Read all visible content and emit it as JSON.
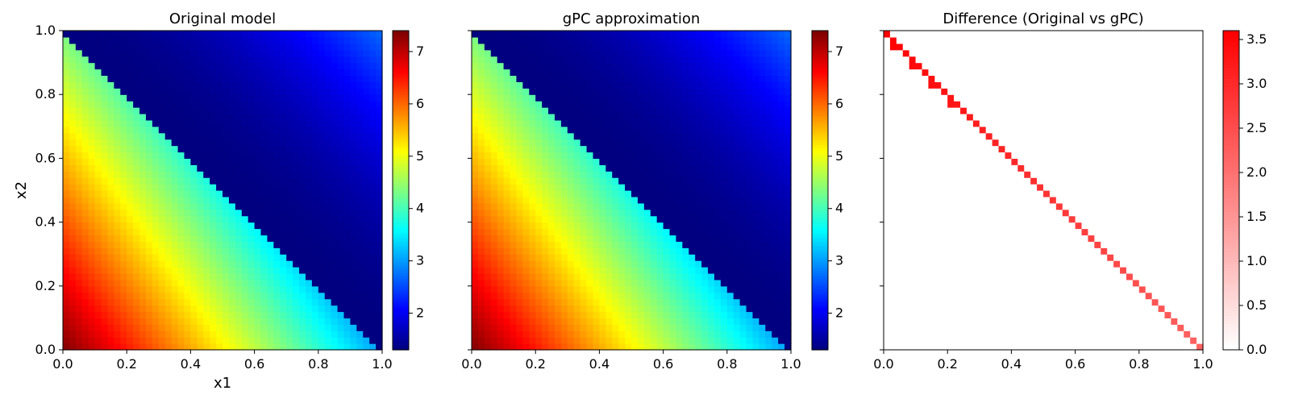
{
  "chart_data": [
    {
      "type": "heatmap",
      "title": "Original model",
      "xlabel": "x1",
      "ylabel": "x2",
      "xlim": [
        0.0,
        1.0
      ],
      "ylim": [
        0.0,
        1.0
      ],
      "xticks": [
        "0.0",
        "0.2",
        "0.4",
        "0.6",
        "0.8",
        "1.0"
      ],
      "yticks": [
        "0.0",
        "0.2",
        "0.4",
        "0.6",
        "0.8",
        "1.0"
      ],
      "show_yticklabels": true,
      "grid_resolution": 50,
      "colormap": "jet",
      "clim": [
        1.3,
        7.4
      ],
      "colorbar_ticks": [
        "2",
        "3",
        "4",
        "5",
        "6",
        "7"
      ],
      "region_boundary": "x1 + x2 = 1",
      "value_corners": {
        "x1=0,x2=0": 7.4,
        "x1=1,x2=0": 3.0,
        "x1=0,x2=1": 4.3,
        "just_above_diagonal": 1.3,
        "x1=1,x2=1": 2.7
      }
    },
    {
      "type": "heatmap",
      "title": "gPC approximation",
      "xlabel": "",
      "ylabel": "",
      "xlim": [
        0.0,
        1.0
      ],
      "ylim": [
        0.0,
        1.0
      ],
      "xticks": [
        "0.0",
        "0.2",
        "0.4",
        "0.6",
        "0.8",
        "1.0"
      ],
      "yticks": [
        "0.0",
        "0.2",
        "0.4",
        "0.6",
        "0.8",
        "1.0"
      ],
      "show_yticklabels": false,
      "grid_resolution": 50,
      "colormap": "jet",
      "clim": [
        1.3,
        7.4
      ],
      "colorbar_ticks": [
        "2",
        "3",
        "4",
        "5",
        "6",
        "7"
      ],
      "region_boundary": "x1 + x2 = 1",
      "value_corners": {
        "x1=0,x2=0": 7.4,
        "x1=1,x2=0": 3.0,
        "x1=0,x2=1": 4.3,
        "just_above_diagonal": 1.3,
        "x1=1,x2=1": 2.7
      }
    },
    {
      "type": "heatmap",
      "title": "Difference (Original vs gPC)",
      "xlabel": "",
      "ylabel": "",
      "xlim": [
        0.0,
        1.0
      ],
      "ylim": [
        0.0,
        1.0
      ],
      "xticks": [
        "0.0",
        "0.2",
        "0.4",
        "0.6",
        "0.8",
        "1.0"
      ],
      "yticks": [
        "0.0",
        "0.2",
        "0.4",
        "0.6",
        "0.8",
        "1.0"
      ],
      "show_yticklabels": false,
      "grid_resolution": 50,
      "colormap": "white-red",
      "clim": [
        0.0,
        3.6
      ],
      "colorbar_ticks": [
        "0.0",
        "0.5",
        "1.0",
        "1.5",
        "2.0",
        "2.5",
        "3.0",
        "3.5"
      ],
      "diagonal_band": {
        "value_at_x1_0": 3.6,
        "value_at_x1_1": 2.2,
        "value_elsewhere": 0.0
      }
    }
  ]
}
